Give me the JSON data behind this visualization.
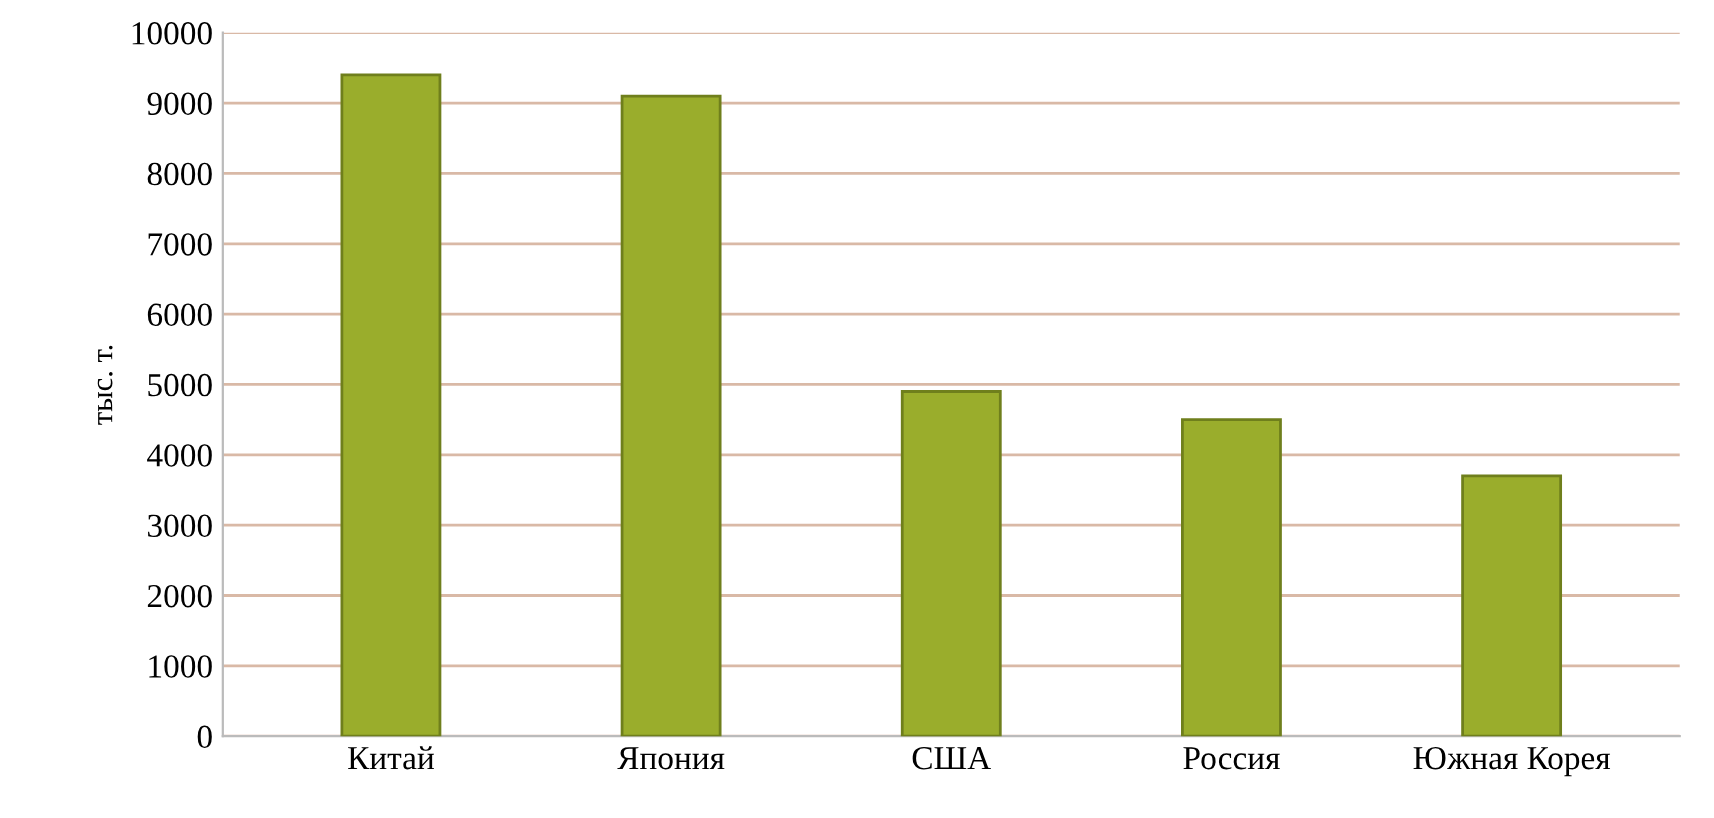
{
  "chart_data": {
    "type": "bar",
    "ylabel": "тыс. т.",
    "categories": [
      "Китай",
      "Япония",
      "США",
      "Россия",
      "Южная Корея"
    ],
    "values": [
      9400,
      9100,
      4900,
      4500,
      3700
    ],
    "color": "#9aad2c",
    "ylim": [
      0,
      10000
    ],
    "yticks": [
      0,
      1000,
      2000,
      3000,
      4000,
      5000,
      6000,
      7000,
      8000,
      9000,
      10000
    ],
    "grid": "y"
  }
}
